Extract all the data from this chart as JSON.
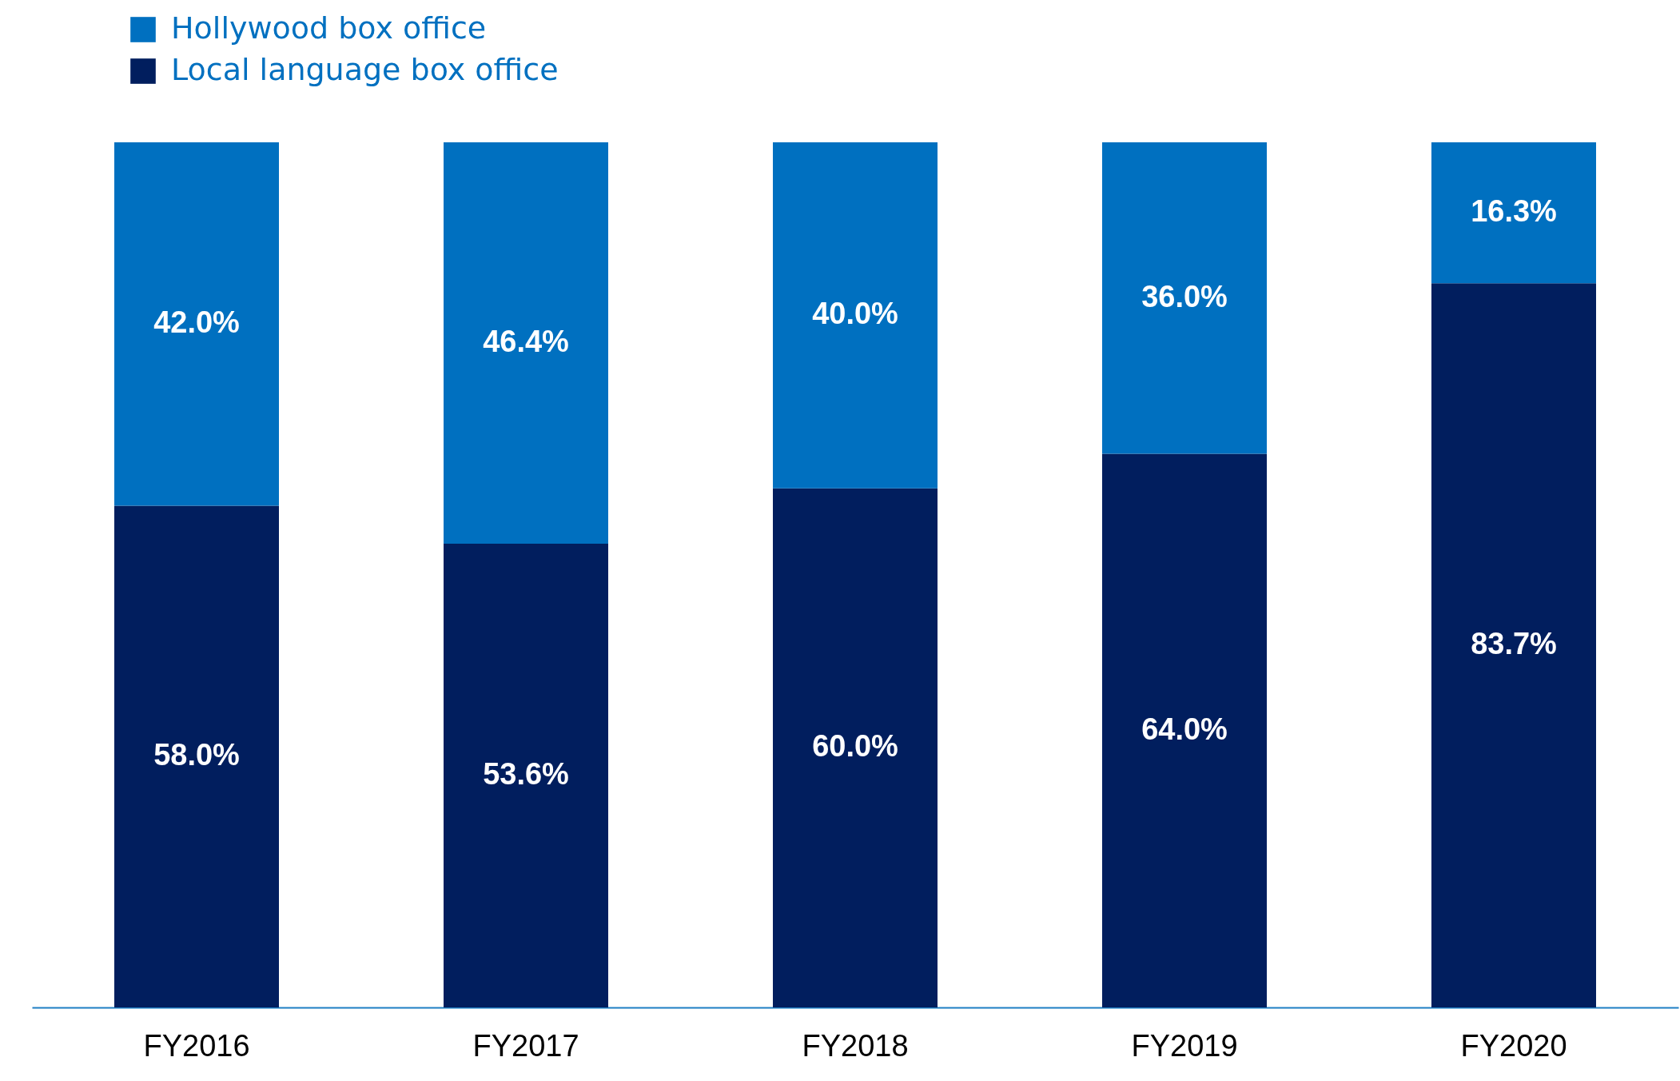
{
  "chart_data": {
    "type": "bar",
    "stacked": true,
    "categories": [
      "FY2016",
      "FY2017",
      "FY2018",
      "FY2019",
      "FY2020"
    ],
    "series": [
      {
        "name": "Local language box office",
        "color": "#011e5e",
        "values": [
          58.0,
          53.6,
          60.0,
          64.0,
          83.7
        ],
        "value_labels": [
          "58.0%",
          "53.6%",
          "60.0%",
          "64.0%",
          "83.7%"
        ]
      },
      {
        "name": "Hollywood box office",
        "color": "#0070c0",
        "values": [
          42.0,
          46.4,
          40.0,
          36.0,
          16.3
        ],
        "value_labels": [
          "42.0%",
          "46.4%",
          "40.0%",
          "36.0%",
          "16.3%"
        ]
      }
    ],
    "ylim": [
      0,
      100
    ],
    "tick_labels": "x",
    "legend": "top left",
    "grid": false
  }
}
